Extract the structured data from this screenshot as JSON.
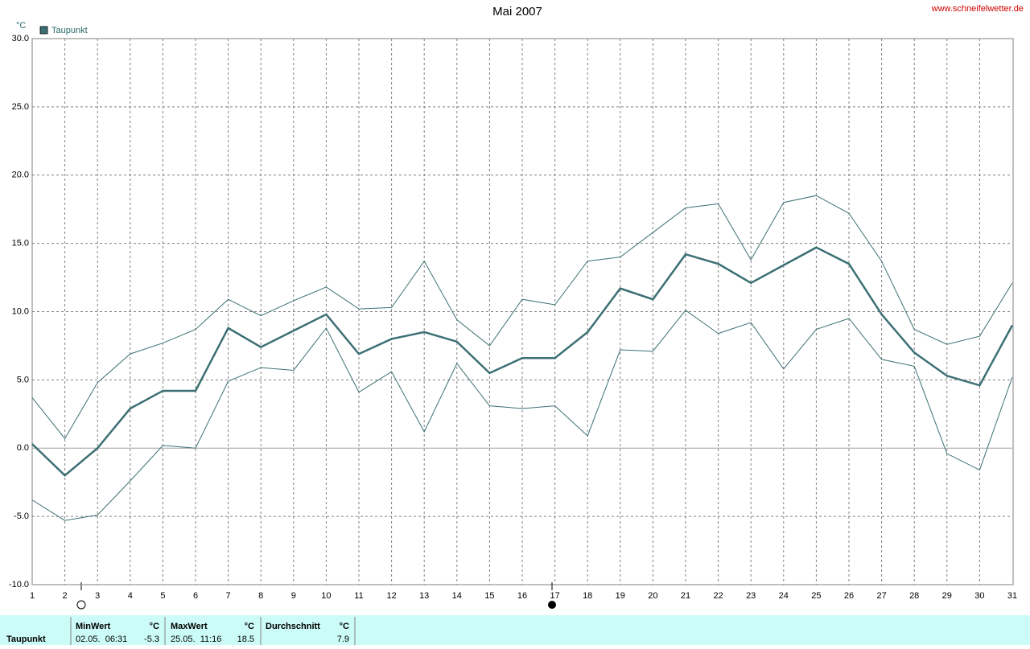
{
  "chart_data": {
    "type": "line",
    "title": "Mai 2007",
    "source": "www.schneifelwetter.de",
    "y_label": "°C",
    "x": [
      1,
      2,
      3,
      4,
      5,
      6,
      7,
      8,
      9,
      10,
      11,
      12,
      13,
      14,
      15,
      16,
      17,
      18,
      19,
      20,
      21,
      22,
      23,
      24,
      25,
      26,
      27,
      28,
      29,
      30,
      31
    ],
    "xlim": [
      1,
      31
    ],
    "xticks": [
      1,
      2,
      3,
      4,
      5,
      6,
      7,
      8,
      9,
      10,
      11,
      12,
      13,
      14,
      15,
      16,
      17,
      18,
      19,
      20,
      21,
      22,
      23,
      24,
      25,
      26,
      27,
      28,
      29,
      30,
      31
    ],
    "ylim": [
      -10,
      30
    ],
    "yticks": [
      {
        "value": -10,
        "label": "-10.0"
      },
      {
        "value": -5,
        "label": "-5.0"
      },
      {
        "value": 0,
        "label": "0.0"
      },
      {
        "value": 5,
        "label": "5.0"
      },
      {
        "value": 10,
        "label": "10.0"
      },
      {
        "value": 15,
        "label": "15.0"
      },
      {
        "value": 20,
        "label": "20.0"
      },
      {
        "value": 25,
        "label": "25.0"
      },
      {
        "value": 30,
        "label": "30.0"
      }
    ],
    "grid": true,
    "series": [
      {
        "name": "Taupunkt",
        "color": "#3c7074",
        "values": [
          0.3,
          -2.0,
          0.0,
          2.9,
          4.2,
          4.2,
          8.8,
          7.4,
          8.6,
          9.8,
          6.9,
          8.0,
          8.5,
          7.8,
          5.5,
          6.6,
          6.6,
          8.5,
          11.7,
          10.9,
          14.2,
          13.5,
          12.1,
          13.4,
          14.7,
          13.5,
          9.8,
          7.0,
          5.3,
          4.6,
          9.0
        ]
      },
      {
        "color": "#3c7074",
        "values": [
          3.7,
          0.7,
          4.8,
          6.9,
          7.7,
          8.7,
          10.9,
          9.7,
          10.8,
          11.8,
          10.2,
          10.3,
          13.7,
          9.4,
          7.5,
          10.9,
          10.5,
          13.7,
          14.0,
          15.8,
          17.6,
          17.9,
          13.8,
          18.0,
          18.5,
          17.2,
          13.7,
          8.7,
          7.6,
          8.2,
          12.1
        ]
      },
      {
        "color": "#3c7074",
        "values": [
          -3.8,
          -5.3,
          -4.9,
          -2.4,
          0.2,
          0.0,
          4.9,
          5.9,
          5.7,
          8.8,
          4.1,
          5.6,
          1.2,
          6.2,
          3.1,
          2.9,
          3.1,
          0.9,
          7.2,
          7.1,
          10.1,
          8.4,
          9.2,
          5.8,
          8.7,
          9.5,
          6.5,
          6.0,
          -0.4,
          -1.6,
          5.2
        ]
      }
    ]
  },
  "summary": {
    "label": "Taupunkt",
    "columns": [
      {
        "header": "MinWert",
        "unit": "°C",
        "time": "02.05.  06:31",
        "value": -5.3
      },
      {
        "header": "MaxWert",
        "unit": "°C",
        "time": "25.05.  11:16",
        "value": 18.5
      },
      {
        "header": "Durchschnitt",
        "unit": "°C",
        "value": 7.9
      }
    ]
  }
}
